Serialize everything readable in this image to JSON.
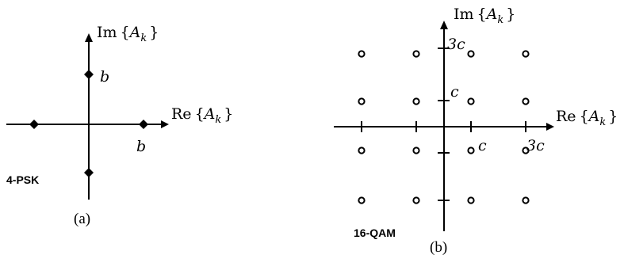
{
  "panel_a": {
    "tag": "4-PSK",
    "caption": "(a)",
    "im_axis": {
      "fn": "Im",
      "lb": "{",
      "var": "A",
      "sub": "k",
      "rb": "}"
    },
    "re_axis": {
      "fn": "Re",
      "lb": "{",
      "var": "A",
      "sub": "k",
      "rb": "}"
    },
    "y_tick_label": "b",
    "x_tick_label": "b",
    "points": [
      [
        1,
        0
      ],
      [
        0,
        1
      ],
      [
        -1,
        0
      ],
      [
        0,
        -1
      ]
    ]
  },
  "panel_b": {
    "tag": "16-QAM",
    "caption": "(b)",
    "im_axis": {
      "fn": "Im",
      "lb": "{",
      "var": "A",
      "sub": "k",
      "rb": "}"
    },
    "re_axis": {
      "fn": "Re",
      "lb": "{",
      "var": "A",
      "sub": "k",
      "rb": "}"
    },
    "y_tick_labels": [
      "c",
      "3c"
    ],
    "x_tick_labels": [
      "c",
      "3c"
    ],
    "points": [
      [
        -3,
        3
      ],
      [
        -1,
        3
      ],
      [
        1,
        3
      ],
      [
        3,
        3
      ],
      [
        -3,
        1
      ],
      [
        -1,
        1
      ],
      [
        1,
        1
      ],
      [
        3,
        1
      ],
      [
        -3,
        -1
      ],
      [
        -1,
        -1
      ],
      [
        1,
        -1
      ],
      [
        3,
        -1
      ],
      [
        -3,
        -3
      ],
      [
        -1,
        -3
      ],
      [
        1,
        -3
      ],
      [
        3,
        -3
      ]
    ]
  }
}
